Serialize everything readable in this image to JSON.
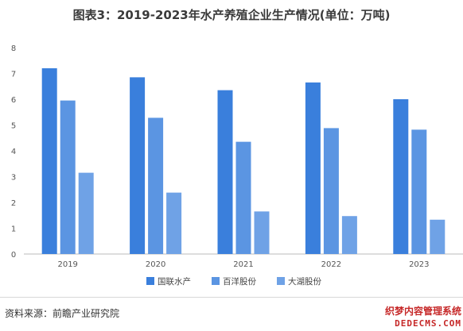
{
  "figure_title": "图表3：2019-2023年水产养殖企业生产情况(单位：万吨)",
  "source_note": "资料来源：前瞻产业研究院",
  "watermark": {
    "line1": "织梦内容管理系统",
    "line2": "DEDECMS.COM"
  },
  "colors": {
    "series": [
      "#3a7fdc",
      "#5b95e2",
      "#6fa2e6"
    ],
    "axis": "#bbbbbb",
    "text": "#555555"
  },
  "chart_data": {
    "type": "bar",
    "title": "图表3：2019-2023年水产养殖企业生产情况(单位：万吨)",
    "categories": [
      "2019",
      "2020",
      "2021",
      "2022",
      "2023"
    ],
    "series": [
      {
        "name": "国联水产",
        "values": [
          7.2,
          6.85,
          6.35,
          6.65,
          6.0
        ]
      },
      {
        "name": "百洋股份",
        "values": [
          5.95,
          5.28,
          4.35,
          4.88,
          4.82
        ]
      },
      {
        "name": "大湖股份",
        "values": [
          3.15,
          2.38,
          1.65,
          1.47,
          1.33
        ]
      }
    ],
    "ylim": [
      0,
      8
    ],
    "yticks": [
      "0",
      "1",
      "2",
      "3",
      "4",
      "5",
      "6",
      "7",
      "8"
    ],
    "grid": false,
    "legend": "bottom-center",
    "xlabel": "",
    "ylabel": ""
  }
}
